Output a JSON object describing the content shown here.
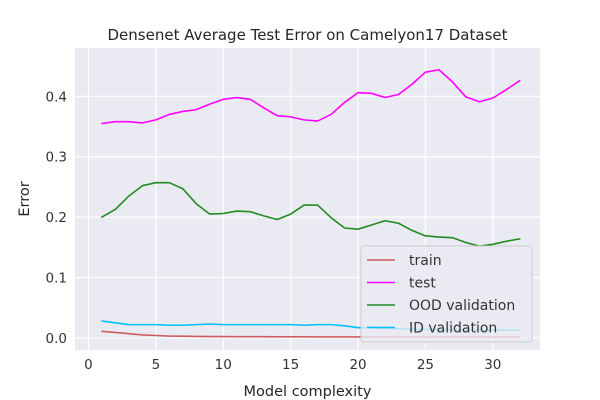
{
  "chart_data": {
    "type": "line",
    "title": "Densenet Average Test Error on Camelyon17 Dataset",
    "xlabel": "Model complexity",
    "ylabel": "Error",
    "xlim": [
      -1,
      33.5
    ],
    "ylim": [
      -0.02,
      0.48
    ],
    "xticks": [
      0,
      5,
      10,
      15,
      20,
      25,
      30
    ],
    "yticks": [
      0.0,
      0.1,
      0.2,
      0.3,
      0.4
    ],
    "grid": true,
    "legend_position": "lower-right",
    "x": [
      1,
      2,
      3,
      4,
      5,
      6,
      7,
      8,
      9,
      10,
      11,
      12,
      13,
      14,
      15,
      16,
      17,
      18,
      19,
      20,
      21,
      22,
      23,
      24,
      25,
      26,
      27,
      28,
      29,
      30,
      31,
      32
    ],
    "series": [
      {
        "name": "train",
        "color": "#cd5c5c",
        "values": [
          0.011,
          0.009,
          0.007,
          0.005,
          0.004,
          0.003,
          0.0028,
          0.0025,
          0.0023,
          0.0022,
          0.0021,
          0.002,
          0.002,
          0.0019,
          0.0018,
          0.0018,
          0.0017,
          0.0017,
          0.0017,
          0.0016,
          0.0016,
          0.0016,
          0.0016,
          0.0015,
          0.0015,
          0.0015,
          0.0015,
          0.0015,
          0.0015,
          0.0015,
          0.0015,
          0.0015
        ]
      },
      {
        "name": "test",
        "color": "#ff00ff",
        "values": [
          0.355,
          0.358,
          0.358,
          0.356,
          0.361,
          0.37,
          0.375,
          0.378,
          0.387,
          0.395,
          0.398,
          0.395,
          0.381,
          0.368,
          0.366,
          0.361,
          0.359,
          0.37,
          0.39,
          0.406,
          0.405,
          0.398,
          0.403,
          0.42,
          0.44,
          0.444,
          0.424,
          0.399,
          0.391,
          0.397,
          0.411,
          0.426
        ]
      },
      {
        "name": "OOD validation",
        "color": "#228b22",
        "values": [
          0.2,
          0.213,
          0.235,
          0.252,
          0.257,
          0.257,
          0.247,
          0.222,
          0.205,
          0.206,
          0.21,
          0.209,
          0.202,
          0.196,
          0.205,
          0.22,
          0.22,
          0.199,
          0.182,
          0.18,
          0.187,
          0.194,
          0.19,
          0.178,
          0.169,
          0.167,
          0.166,
          0.158,
          0.152,
          0.155,
          0.16,
          0.164
        ]
      },
      {
        "name": "ID validation",
        "color": "#00bfff",
        "values": [
          0.028,
          0.025,
          0.022,
          0.022,
          0.022,
          0.021,
          0.021,
          0.022,
          0.023,
          0.022,
          0.022,
          0.022,
          0.022,
          0.022,
          0.022,
          0.021,
          0.022,
          0.022,
          0.02,
          0.017,
          0.017,
          0.016,
          0.015,
          0.014,
          0.014,
          0.014,
          0.013,
          0.013,
          0.013,
          0.013,
          0.013,
          0.013
        ]
      }
    ]
  }
}
